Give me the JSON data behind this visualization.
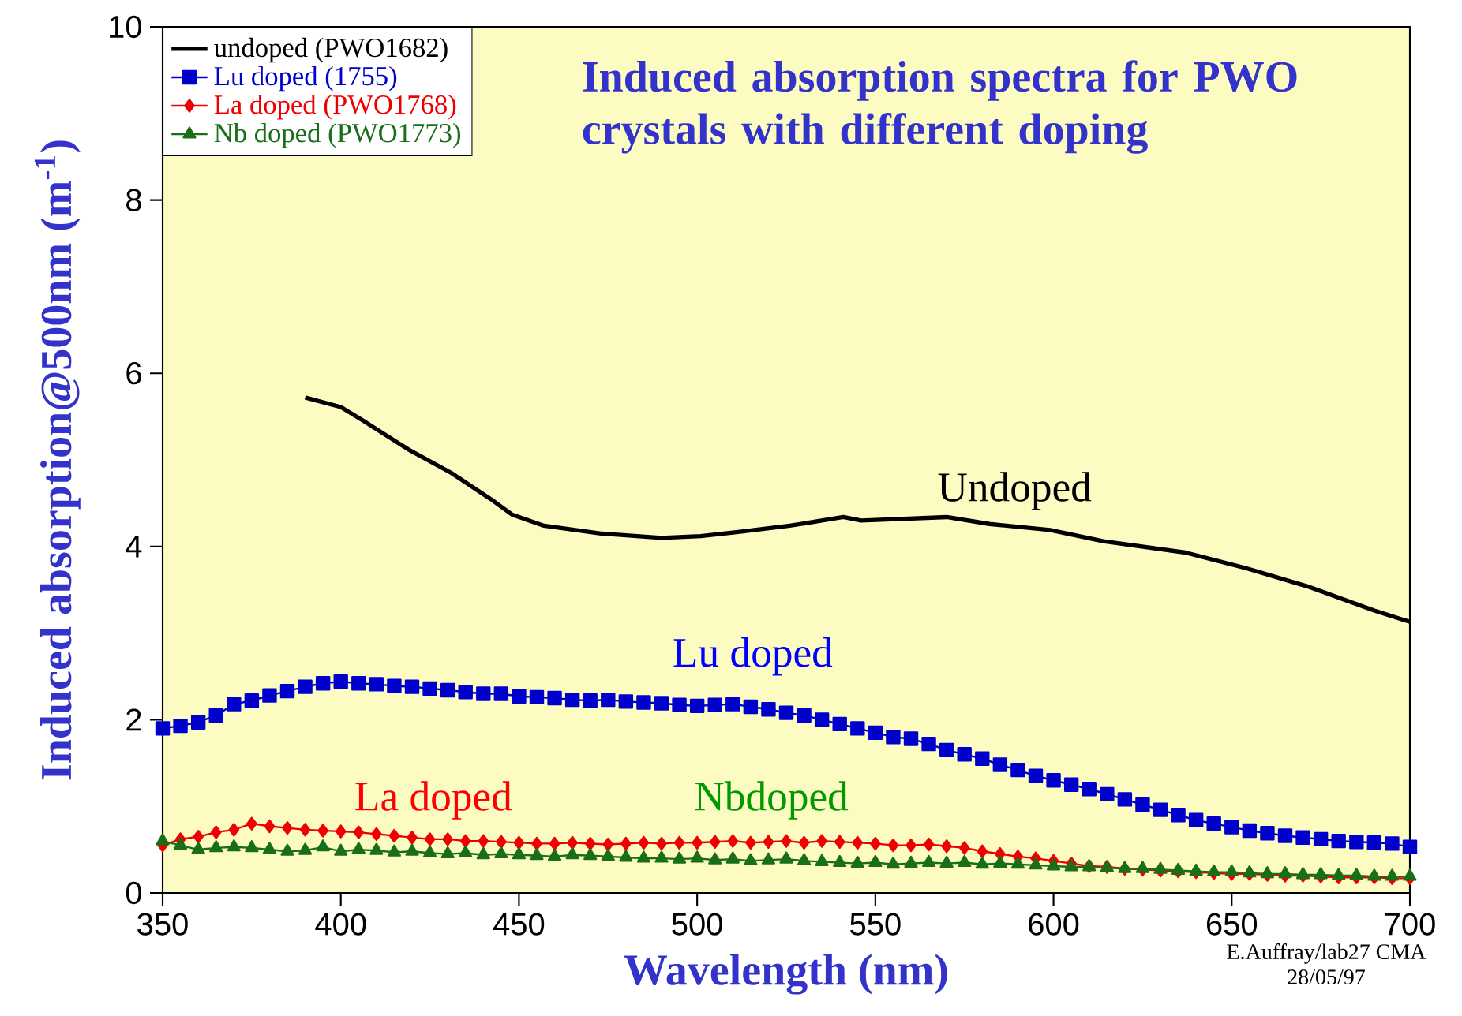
{
  "chart_data": {
    "type": "line",
    "title": "Induced absorption spectra for PWO crystals with different doping",
    "xlabel": "Wavelength (nm)",
    "ylabel": "Induced absorption@500nm (m$^{-1}$)",
    "x": [
      350,
      355,
      360,
      365,
      370,
      375,
      380,
      385,
      390,
      395,
      400,
      405,
      410,
      415,
      420,
      425,
      430,
      435,
      440,
      445,
      450,
      455,
      460,
      465,
      470,
      475,
      480,
      485,
      490,
      495,
      500,
      505,
      510,
      515,
      520,
      525,
      530,
      535,
      540,
      545,
      550,
      555,
      560,
      565,
      570,
      575,
      580,
      585,
      590,
      595,
      600,
      605,
      610,
      615,
      620,
      625,
      630,
      635,
      640,
      645,
      650,
      655,
      660,
      665,
      670,
      675,
      680,
      685,
      690,
      695,
      700
    ],
    "xlim": [
      350,
      700
    ],
    "ylim": [
      0,
      10
    ],
    "xticks": [
      350,
      400,
      450,
      500,
      550,
      600,
      650,
      700
    ],
    "yticks": [
      0,
      2,
      4,
      6,
      8,
      10
    ],
    "legend": "top left",
    "series": [
      {
        "name": "undoped (PWO1682)",
        "color": "#000000",
        "marker": "none",
        "x": [
          390,
          400,
          406,
          419,
          431,
          442,
          448,
          457,
          473,
          490,
          501,
          512,
          526,
          541,
          546,
          570,
          582,
          599,
          614,
          637,
          654,
          672,
          690,
          700
        ],
        "values": [
          5.72,
          5.61,
          5.46,
          5.12,
          4.85,
          4.55,
          4.37,
          4.24,
          4.15,
          4.1,
          4.12,
          4.17,
          4.24,
          4.34,
          4.3,
          4.34,
          4.26,
          4.19,
          4.06,
          3.93,
          3.75,
          3.53,
          3.26,
          3.13
        ]
      },
      {
        "name": "Lu doped (1755)",
        "color": "#0000cc",
        "marker": "square",
        "values": [
          1.9,
          1.93,
          1.97,
          2.05,
          2.18,
          2.22,
          2.28,
          2.33,
          2.38,
          2.42,
          2.44,
          2.42,
          2.41,
          2.39,
          2.38,
          2.36,
          2.34,
          2.32,
          2.3,
          2.3,
          2.27,
          2.26,
          2.25,
          2.23,
          2.22,
          2.23,
          2.21,
          2.2,
          2.19,
          2.17,
          2.16,
          2.17,
          2.18,
          2.15,
          2.12,
          2.08,
          2.05,
          2.0,
          1.95,
          1.9,
          1.85,
          1.8,
          1.78,
          1.72,
          1.65,
          1.6,
          1.55,
          1.48,
          1.42,
          1.35,
          1.3,
          1.25,
          1.2,
          1.14,
          1.08,
          1.02,
          0.96,
          0.9,
          0.84,
          0.8,
          0.76,
          0.72,
          0.69,
          0.66,
          0.64,
          0.62,
          0.6,
          0.59,
          0.58,
          0.57,
          0.53
        ]
      },
      {
        "name": "La doped (PWO1768)",
        "color": "#ee0000",
        "marker": "diamond",
        "values": [
          0.55,
          0.62,
          0.65,
          0.7,
          0.73,
          0.8,
          0.77,
          0.75,
          0.73,
          0.72,
          0.71,
          0.7,
          0.68,
          0.66,
          0.64,
          0.62,
          0.62,
          0.6,
          0.6,
          0.59,
          0.58,
          0.57,
          0.57,
          0.58,
          0.57,
          0.56,
          0.57,
          0.58,
          0.57,
          0.58,
          0.58,
          0.59,
          0.6,
          0.58,
          0.59,
          0.6,
          0.58,
          0.6,
          0.59,
          0.58,
          0.57,
          0.55,
          0.55,
          0.56,
          0.54,
          0.52,
          0.48,
          0.45,
          0.42,
          0.4,
          0.37,
          0.34,
          0.31,
          0.3,
          0.28,
          0.27,
          0.26,
          0.25,
          0.24,
          0.23,
          0.22,
          0.22,
          0.21,
          0.2,
          0.2,
          0.19,
          0.18,
          0.18,
          0.18,
          0.17,
          0.17
        ]
      },
      {
        "name": "Nb doped (PWO1773)",
        "color": "#1a6e1a",
        "marker": "triangle",
        "values": [
          0.6,
          0.55,
          0.5,
          0.52,
          0.53,
          0.52,
          0.5,
          0.48,
          0.49,
          0.53,
          0.48,
          0.5,
          0.49,
          0.47,
          0.48,
          0.46,
          0.45,
          0.46,
          0.44,
          0.45,
          0.44,
          0.43,
          0.42,
          0.44,
          0.43,
          0.42,
          0.41,
          0.4,
          0.4,
          0.39,
          0.4,
          0.38,
          0.39,
          0.37,
          0.38,
          0.39,
          0.37,
          0.36,
          0.35,
          0.34,
          0.35,
          0.33,
          0.34,
          0.35,
          0.34,
          0.35,
          0.33,
          0.34,
          0.33,
          0.32,
          0.31,
          0.3,
          0.3,
          0.29,
          0.28,
          0.28,
          0.27,
          0.26,
          0.25,
          0.24,
          0.24,
          0.23,
          0.22,
          0.22,
          0.21,
          0.21,
          0.2,
          0.2,
          0.19,
          0.19,
          0.19
        ]
      }
    ],
    "annotations": [
      "Undoped",
      "Lu doped",
      "La doped",
      "Nbdoped",
      "E.Auffray/lab27 CMA",
      "28/05/97"
    ]
  }
}
